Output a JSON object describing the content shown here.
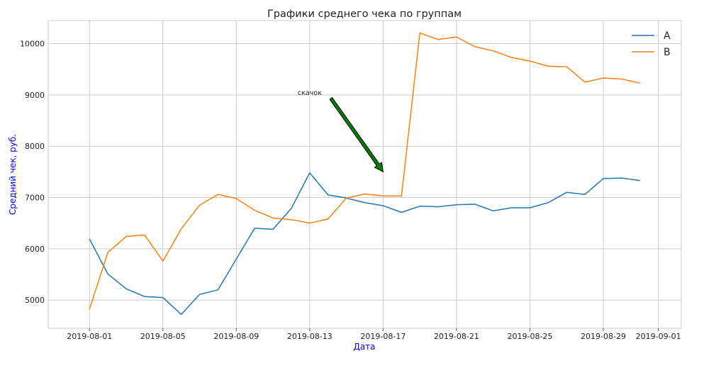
{
  "chart_data": {
    "type": "line",
    "title": "Графики среднего чека по группам",
    "xlabel": "Дата",
    "ylabel": "Средний чек, руб.",
    "label_color": "#0000ff",
    "grid": true,
    "legend_position": "top-right",
    "xlim": [
      "2019-07-29 18:00",
      "2019-09-02 06:00"
    ],
    "ylim": [
      4450,
      10450
    ],
    "x_ticks": [
      "2019-08-01",
      "2019-08-05",
      "2019-08-09",
      "2019-08-13",
      "2019-08-17",
      "2019-08-21",
      "2019-08-25",
      "2019-08-29",
      "2019-09-01"
    ],
    "y_ticks": [
      5000,
      6000,
      7000,
      8000,
      9000,
      10000
    ],
    "x": [
      "2019-08-01",
      "2019-08-02",
      "2019-08-03",
      "2019-08-04",
      "2019-08-05",
      "2019-08-06",
      "2019-08-07",
      "2019-08-08",
      "2019-08-09",
      "2019-08-10",
      "2019-08-11",
      "2019-08-12",
      "2019-08-13",
      "2019-08-14",
      "2019-08-15",
      "2019-08-16",
      "2019-08-17",
      "2019-08-18",
      "2019-08-19",
      "2019-08-20",
      "2019-08-21",
      "2019-08-22",
      "2019-08-23",
      "2019-08-24",
      "2019-08-25",
      "2019-08-26",
      "2019-08-27",
      "2019-08-28",
      "2019-08-29",
      "2019-08-30",
      "2019-08-31"
    ],
    "series": [
      {
        "name": "A",
        "color": "#1f77b4",
        "values": [
          6190,
          5510,
          5220,
          5070,
          5050,
          4720,
          5110,
          5200,
          5800,
          6400,
          6380,
          6790,
          7480,
          7050,
          6990,
          6900,
          6840,
          6710,
          6830,
          6820,
          6860,
          6870,
          6740,
          6800,
          6800,
          6900,
          7100,
          7060,
          7370,
          7380,
          7330
        ]
      },
      {
        "name": "B",
        "color": "#ff7f0e",
        "values": [
          4820,
          5930,
          6240,
          6270,
          5760,
          6390,
          6850,
          7060,
          6980,
          6750,
          6600,
          6570,
          6500,
          6580,
          6990,
          7070,
          7030,
          7030,
          10210,
          10080,
          10130,
          9940,
          9860,
          9730,
          9660,
          9560,
          9550,
          9250,
          9330,
          9310,
          9230
        ]
      }
    ],
    "annotation": {
      "text": "скачок",
      "text_x": "2019-08-13",
      "text_y": 9000,
      "arrow_to_x": "2019-08-17",
      "arrow_to_y": 7500,
      "arrow_color": "#008000"
    }
  }
}
